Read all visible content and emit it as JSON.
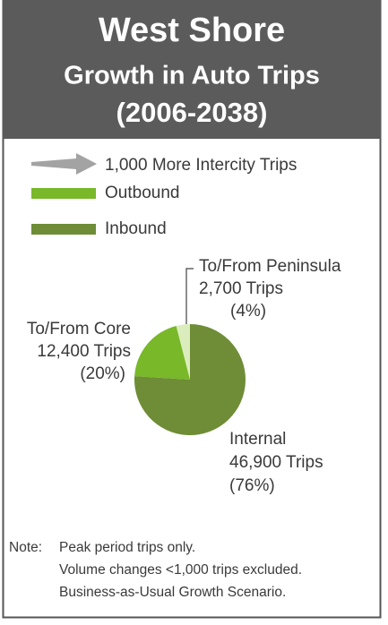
{
  "chart_data": {
    "type": "pie",
    "title": [
      "West Shore",
      "Growth in Auto Trips",
      "(2006-2038)"
    ],
    "legend": [
      {
        "label": "1,000 More Intercity Trips",
        "color": "#a3a3a3"
      },
      {
        "label": "Outbound",
        "color": "#78b829"
      },
      {
        "label": "Inbound",
        "color": "#6e8d36"
      }
    ],
    "categories": [
      "To/From Peninsula",
      "To/From Core",
      "Internal"
    ],
    "values": [
      4,
      20,
      76
    ],
    "value_labels": [
      "(4%)",
      "(20%)",
      "(76%)"
    ],
    "trips": [
      2700,
      12400,
      46900
    ],
    "trips_labels": [
      "2,700 Trips",
      "12,400 Trips",
      "46,900 Trips"
    ],
    "colors": [
      "#dcedbd",
      "#78b829",
      "#6e8d36"
    ],
    "note": {
      "prefix": "Note:",
      "lines": [
        "Peak period trips only.",
        "Volume changes <1,000 trips excluded.",
        "Business-as-Usual Growth Scenario."
      ]
    }
  }
}
